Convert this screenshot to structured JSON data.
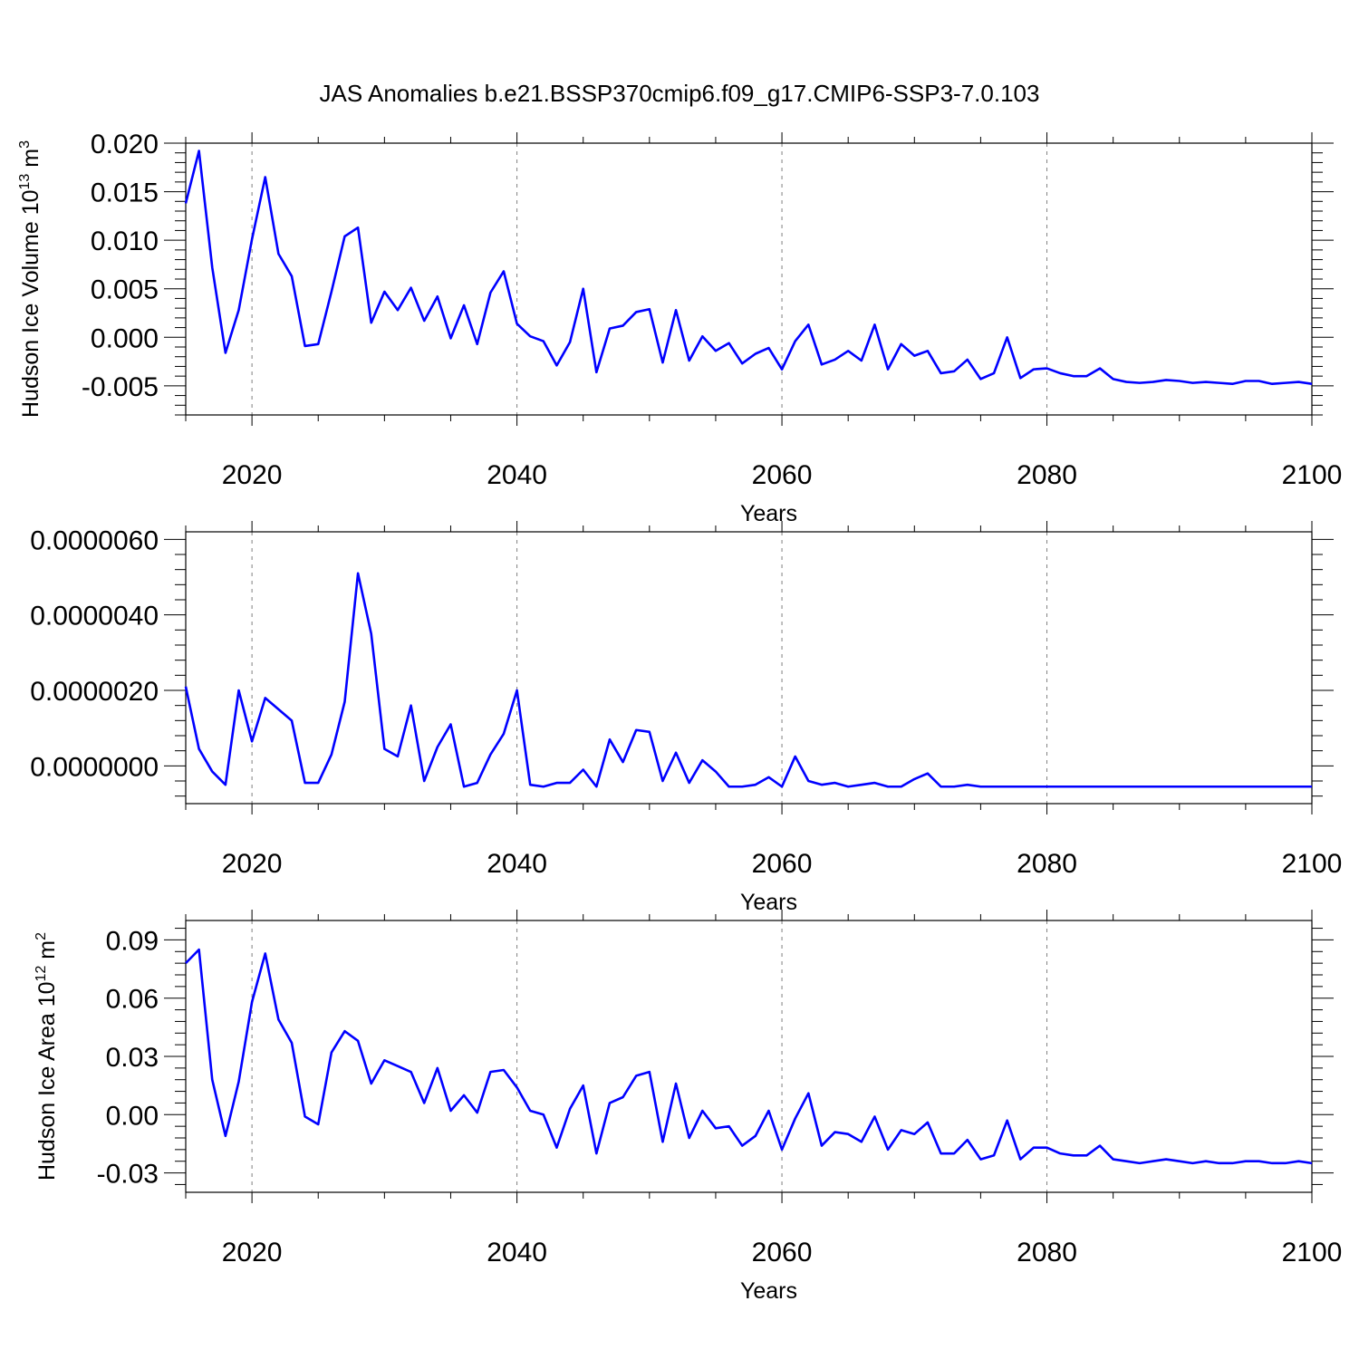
{
  "title": "JAS Anomalies b.e21.BSSP370cmip6.f09_g17.CMIP6-SSP3-7.0.103",
  "colors": {
    "line": "#0000ff",
    "axis": "#000000",
    "grid": "#808080"
  },
  "chart_data": [
    {
      "type": "line",
      "ylabel": "Hudson Ice Volume 10",
      "ylabel_exp": "13",
      "ylabel_unit": " m",
      "ylabel_unit_exp": "3",
      "xlabel": "Years",
      "xlim": [
        2015,
        2100
      ],
      "ylim": [
        -0.008,
        0.02
      ],
      "xticks": [
        2020,
        2040,
        2060,
        2080,
        2100
      ],
      "yticks": [
        -0.005,
        0.0,
        0.005,
        0.01,
        0.015,
        0.02
      ],
      "ytick_labels": [
        "-0.005",
        "0.000",
        "0.005",
        "0.010",
        "0.015",
        "0.020"
      ],
      "grid_x": [
        2020,
        2040,
        2060,
        2080
      ],
      "x": [
        2015,
        2016,
        2017,
        2018,
        2019,
        2020,
        2021,
        2022,
        2023,
        2024,
        2025,
        2026,
        2027,
        2028,
        2029,
        2030,
        2031,
        2032,
        2033,
        2034,
        2035,
        2036,
        2037,
        2038,
        2039,
        2040,
        2041,
        2042,
        2043,
        2044,
        2045,
        2046,
        2047,
        2048,
        2049,
        2050,
        2051,
        2052,
        2053,
        2054,
        2055,
        2056,
        2057,
        2058,
        2059,
        2060,
        2061,
        2062,
        2063,
        2064,
        2065,
        2066,
        2067,
        2068,
        2069,
        2070,
        2071,
        2072,
        2073,
        2074,
        2075,
        2076,
        2077,
        2078,
        2079,
        2080,
        2081,
        2082,
        2083,
        2084,
        2085,
        2086,
        2087,
        2088,
        2089,
        2090,
        2091,
        2092,
        2093,
        2094,
        2095,
        2096,
        2097,
        2098,
        2099,
        2100
      ],
      "y": [
        0.0138,
        0.0192,
        0.0072,
        -0.0016,
        0.0028,
        0.0101,
        0.0165,
        0.0086,
        0.0063,
        -0.0009,
        -0.0007,
        0.0047,
        0.0104,
        0.0113,
        0.0015,
        0.0047,
        0.0028,
        0.0051,
        0.0017,
        0.0042,
        -0.0001,
        0.0033,
        -0.0007,
        0.0046,
        0.0068,
        0.0014,
        0.0001,
        -0.0004,
        -0.0029,
        -0.0005,
        0.005,
        -0.0036,
        0.0009,
        0.0012,
        0.0026,
        0.0029,
        -0.0026,
        0.0028,
        -0.0024,
        0.0001,
        -0.0014,
        -0.0006,
        -0.0027,
        -0.0017,
        -0.0011,
        -0.0033,
        -0.0004,
        0.0013,
        -0.0028,
        -0.0023,
        -0.0014,
        -0.0024,
        0.0013,
        -0.0033,
        -0.0007,
        -0.0019,
        -0.0014,
        -0.0037,
        -0.0035,
        -0.0023,
        -0.0043,
        -0.0037,
        0.0,
        -0.0042,
        -0.0033,
        -0.0032,
        -0.0037,
        -0.004,
        -0.004,
        -0.0032,
        -0.0043,
        -0.0046,
        -0.0047,
        -0.0046,
        -0.0044,
        -0.0045,
        -0.0047,
        -0.0046,
        -0.0047,
        -0.0048,
        -0.0045,
        -0.0045,
        -0.0048,
        -0.0047,
        -0.0046,
        -0.0048
      ]
    },
    {
      "type": "line",
      "ylabel": "",
      "xlabel": "Years",
      "xlim": [
        2015,
        2100
      ],
      "ylim": [
        -1e-06,
        6.2e-06
      ],
      "xticks": [
        2020,
        2040,
        2060,
        2080,
        2100
      ],
      "yticks": [
        0.0,
        2e-06,
        4e-06,
        6e-06
      ],
      "ytick_labels": [
        "0.0000000",
        "0.0000020",
        "0.0000040",
        "0.0000060"
      ],
      "grid_x": [
        2020,
        2040,
        2060,
        2080
      ],
      "x": [
        2015,
        2016,
        2017,
        2018,
        2019,
        2020,
        2021,
        2022,
        2023,
        2024,
        2025,
        2026,
        2027,
        2028,
        2029,
        2030,
        2031,
        2032,
        2033,
        2034,
        2035,
        2036,
        2037,
        2038,
        2039,
        2040,
        2041,
        2042,
        2043,
        2044,
        2045,
        2046,
        2047,
        2048,
        2049,
        2050,
        2051,
        2052,
        2053,
        2054,
        2055,
        2056,
        2057,
        2058,
        2059,
        2060,
        2061,
        2062,
        2063,
        2064,
        2065,
        2066,
        2067,
        2068,
        2069,
        2070,
        2071,
        2072,
        2073,
        2074,
        2075,
        2076,
        2077,
        2078,
        2079,
        2080,
        2081,
        2082,
        2083,
        2084,
        2085,
        2086,
        2087,
        2088,
        2089,
        2090,
        2091,
        2092,
        2093,
        2094,
        2095,
        2096,
        2097,
        2098,
        2099,
        2100
      ],
      "y": [
        2.1e-06,
        4.5e-07,
        -1.5e-07,
        -5e-07,
        2e-06,
        6.5e-07,
        1.8e-06,
        1.5e-06,
        1.2e-06,
        -4.5e-07,
        -4.5e-07,
        3e-07,
        1.7e-06,
        5.1e-06,
        3.5e-06,
        4.5e-07,
        2.5e-07,
        1.6e-06,
        -4e-07,
        5e-07,
        1.1e-06,
        -5.5e-07,
        -4.5e-07,
        3e-07,
        8.5e-07,
        2e-06,
        -5e-07,
        -5.5e-07,
        -4.5e-07,
        -4.5e-07,
        -1e-07,
        -5.5e-07,
        7e-07,
        1e-07,
        9.5e-07,
        9e-07,
        -4e-07,
        3.5e-07,
        -4.5e-07,
        1.5e-07,
        -1.5e-07,
        -5.5e-07,
        -5.5e-07,
        -5e-07,
        -3e-07,
        -5.5e-07,
        2.5e-07,
        -4e-07,
        -5e-07,
        -4.5e-07,
        -5.5e-07,
        -5e-07,
        -4.5e-07,
        -5.5e-07,
        -5.5e-07,
        -3.5e-07,
        -2e-07,
        -5.5e-07,
        -5.5e-07,
        -5e-07,
        -5.5e-07,
        -5.5e-07,
        -5.5e-07,
        -5.5e-07,
        -5.5e-07,
        -5.5e-07,
        -5.5e-07,
        -5.5e-07,
        -5.5e-07,
        -5.5e-07,
        -5.5e-07,
        -5.5e-07,
        -5.5e-07,
        -5.5e-07,
        -5.5e-07,
        -5.5e-07,
        -5.5e-07,
        -5.5e-07,
        -5.5e-07,
        -5.5e-07,
        -5.5e-07,
        -5.5e-07,
        -5.5e-07,
        -5.5e-07,
        -5.5e-07,
        -5.5e-07
      ]
    },
    {
      "type": "line",
      "ylabel": "Hudson Ice Area 10",
      "ylabel_exp": "12",
      "ylabel_unit": " m",
      "ylabel_unit_exp": "2",
      "xlabel": "Years",
      "xlim": [
        2015,
        2100
      ],
      "ylim": [
        -0.04,
        0.1
      ],
      "xticks": [
        2020,
        2040,
        2060,
        2080,
        2100
      ],
      "yticks": [
        -0.03,
        0.0,
        0.03,
        0.06,
        0.09
      ],
      "ytick_labels": [
        "-0.03",
        "0.00",
        "0.03",
        "0.06",
        "0.09"
      ],
      "grid_x": [
        2020,
        2040,
        2060,
        2080
      ],
      "x": [
        2015,
        2016,
        2017,
        2018,
        2019,
        2020,
        2021,
        2022,
        2023,
        2024,
        2025,
        2026,
        2027,
        2028,
        2029,
        2030,
        2031,
        2032,
        2033,
        2034,
        2035,
        2036,
        2037,
        2038,
        2039,
        2040,
        2041,
        2042,
        2043,
        2044,
        2045,
        2046,
        2047,
        2048,
        2049,
        2050,
        2051,
        2052,
        2053,
        2054,
        2055,
        2056,
        2057,
        2058,
        2059,
        2060,
        2061,
        2062,
        2063,
        2064,
        2065,
        2066,
        2067,
        2068,
        2069,
        2070,
        2071,
        2072,
        2073,
        2074,
        2075,
        2076,
        2077,
        2078,
        2079,
        2080,
        2081,
        2082,
        2083,
        2084,
        2085,
        2086,
        2087,
        2088,
        2089,
        2090,
        2091,
        2092,
        2093,
        2094,
        2095,
        2096,
        2097,
        2098,
        2099,
        2100
      ],
      "y": [
        0.078,
        0.085,
        0.018,
        -0.011,
        0.017,
        0.058,
        0.083,
        0.049,
        0.037,
        -0.001,
        -0.005,
        0.032,
        0.043,
        0.038,
        0.016,
        0.028,
        0.025,
        0.022,
        0.006,
        0.024,
        0.002,
        0.01,
        0.001,
        0.022,
        0.023,
        0.014,
        0.002,
        0.0,
        -0.017,
        0.003,
        0.015,
        -0.02,
        0.006,
        0.009,
        0.02,
        0.022,
        -0.014,
        0.016,
        -0.012,
        0.002,
        -0.007,
        -0.006,
        -0.016,
        -0.011,
        0.002,
        -0.018,
        -0.002,
        0.011,
        -0.016,
        -0.009,
        -0.01,
        -0.014,
        -0.001,
        -0.018,
        -0.008,
        -0.01,
        -0.004,
        -0.02,
        -0.02,
        -0.013,
        -0.023,
        -0.021,
        -0.003,
        -0.023,
        -0.017,
        -0.017,
        -0.02,
        -0.021,
        -0.021,
        -0.016,
        -0.023,
        -0.024,
        -0.025,
        -0.024,
        -0.023,
        -0.024,
        -0.025,
        -0.024,
        -0.025,
        -0.025,
        -0.024,
        -0.024,
        -0.025,
        -0.025,
        -0.024,
        -0.025
      ]
    }
  ]
}
